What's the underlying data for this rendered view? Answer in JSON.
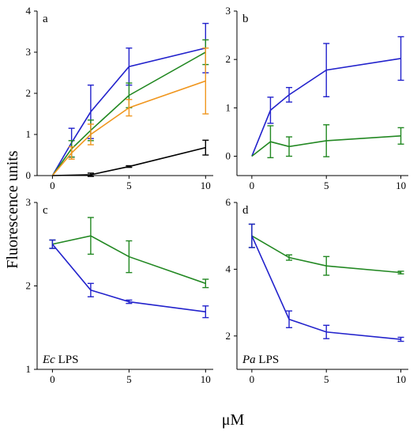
{
  "figure": {
    "ylabel": "Fluorescence units",
    "xlabel": "μM"
  },
  "colors": {
    "blue": "#2222cc",
    "green": "#228822",
    "orange": "#f0961e",
    "black": "#000000"
  },
  "chart_data": [
    {
      "type": "line",
      "panel": "a",
      "note": "",
      "xlim": [
        -1,
        10.5
      ],
      "ylim": [
        0,
        4
      ],
      "xticks": [
        0,
        5,
        10
      ],
      "yticks": [
        0,
        1,
        2,
        3,
        4
      ],
      "series": [
        {
          "color": "blue",
          "x": [
            0,
            1.25,
            2.5,
            5,
            10
          ],
          "y": [
            0,
            0.8,
            1.55,
            2.65,
            3.1
          ],
          "err": [
            0,
            0.35,
            0.65,
            0.45,
            0.6
          ]
        },
        {
          "color": "green",
          "x": [
            0,
            1.25,
            2.5,
            5,
            10
          ],
          "y": [
            0,
            0.65,
            1.1,
            1.95,
            3.0
          ],
          "err": [
            0,
            0.2,
            0.25,
            0.3,
            0.3
          ]
        },
        {
          "color": "orange",
          "x": [
            0,
            1.25,
            2.5,
            5,
            10
          ],
          "y": [
            0,
            0.55,
            1.0,
            1.65,
            2.3
          ],
          "err": [
            0,
            0.15,
            0.25,
            0.2,
            0.8
          ]
        },
        {
          "color": "black",
          "x": [
            0,
            2.5,
            5,
            10
          ],
          "y": [
            0,
            0.02,
            0.22,
            0.68
          ],
          "err": [
            0,
            0.04,
            0.02,
            0.18
          ]
        }
      ]
    },
    {
      "type": "line",
      "panel": "b",
      "note": "",
      "xlim": [
        -1,
        10.5
      ],
      "ylim": [
        -0.4,
        3
      ],
      "xticks": [
        0,
        5,
        10
      ],
      "yticks": [
        0,
        1,
        2,
        3
      ],
      "series": [
        {
          "color": "blue",
          "x": [
            0,
            1.25,
            2.5,
            5,
            10
          ],
          "y": [
            0,
            0.95,
            1.27,
            1.78,
            2.02
          ],
          "err": [
            0,
            0.27,
            0.15,
            0.55,
            0.45
          ]
        },
        {
          "color": "green",
          "x": [
            0,
            1.25,
            2.5,
            5,
            10
          ],
          "y": [
            0,
            0.3,
            0.2,
            0.32,
            0.42
          ],
          "err": [
            0,
            0.33,
            0.2,
            0.33,
            0.17
          ]
        }
      ]
    },
    {
      "type": "line",
      "panel": "c",
      "note": "Ec LPS",
      "note_italic": "Ec",
      "note_rest": " LPS",
      "xlim": [
        -1,
        10.5
      ],
      "ylim": [
        1,
        3
      ],
      "xticks": [
        0,
        5,
        10
      ],
      "yticks": [
        1,
        2,
        3
      ],
      "series": [
        {
          "color": "green",
          "x": [
            0,
            2.5,
            5,
            10
          ],
          "y": [
            2.5,
            2.6,
            2.35,
            2.03
          ],
          "err": [
            0.05,
            0.22,
            0.19,
            0.05
          ]
        },
        {
          "color": "blue",
          "x": [
            0,
            2.5,
            5,
            10
          ],
          "y": [
            2.5,
            1.95,
            1.81,
            1.69
          ],
          "err": [
            0.05,
            0.08,
            0.02,
            0.07
          ]
        }
      ]
    },
    {
      "type": "line",
      "panel": "d",
      "note": "Pa LPS",
      "note_italic": "Pa",
      "note_rest": " LPS",
      "xlim": [
        -1,
        10.5
      ],
      "ylim": [
        1,
        6
      ],
      "xticks": [
        0,
        5,
        10
      ],
      "yticks": [
        2,
        4,
        6
      ],
      "series": [
        {
          "color": "green",
          "x": [
            0,
            2.5,
            5,
            10
          ],
          "y": [
            5.0,
            4.35,
            4.1,
            3.9
          ],
          "err": [
            0.35,
            0.08,
            0.28,
            0.04
          ]
        },
        {
          "color": "blue",
          "x": [
            0,
            2.5,
            5,
            10
          ],
          "y": [
            5.0,
            2.5,
            2.12,
            1.9
          ],
          "err": [
            0.35,
            0.25,
            0.2,
            0.06
          ]
        }
      ]
    }
  ]
}
